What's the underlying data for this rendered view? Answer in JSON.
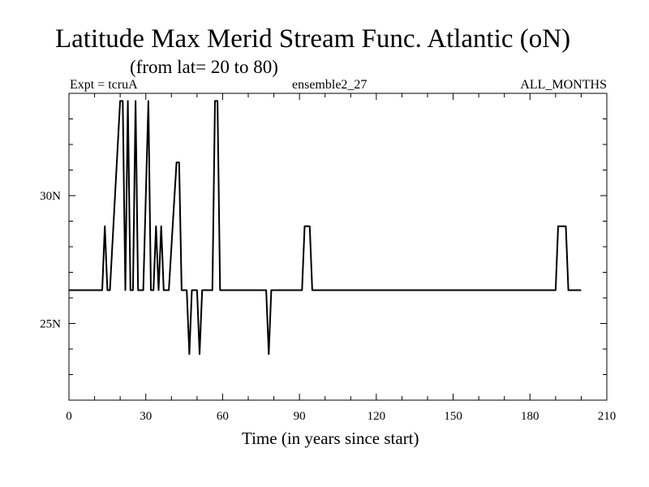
{
  "header": {
    "title": "Latitude Max Merid Stream Func. Atlantic (oN)",
    "subtitle": "(from lat= 20 to 80)",
    "expt": "Expt = tcruA",
    "ensemble": "ensemble2_27",
    "months": "ALL_MONTHS"
  },
  "colors": {
    "line": "#000000",
    "background": "#ffffff"
  },
  "chart_data": {
    "type": "line",
    "title": "Latitude Max Merid Stream Func. Atlantic (oN)",
    "subtitle": "(from lat= 20 to 80)",
    "xlabel": "Time (in years since start)",
    "ylabel": "",
    "xlim": [
      0,
      210
    ],
    "ylim": [
      22.0,
      34.0
    ],
    "x_ticks": [
      0,
      30,
      60,
      90,
      120,
      150,
      180,
      210
    ],
    "x_tick_labels": [
      "0",
      "30",
      "60",
      "90",
      "120",
      "150",
      "180",
      "210"
    ],
    "y_ticks": [
      25,
      30
    ],
    "y_tick_labels": [
      "25N",
      "30N"
    ],
    "grid": false,
    "series": [
      {
        "x": [
          0,
          13,
          14,
          15,
          16,
          20,
          21,
          22,
          23,
          24,
          25,
          26,
          27,
          28,
          29,
          31,
          32,
          33,
          34,
          35,
          36,
          37,
          38,
          39,
          42,
          43,
          44,
          45,
          46,
          47,
          48,
          50,
          51,
          52,
          53,
          56,
          57,
          58,
          59,
          60,
          76,
          77,
          78,
          79,
          80,
          91,
          92,
          94,
          95,
          190,
          191,
          194,
          195,
          200
        ],
        "y": [
          26.3,
          26.3,
          28.8,
          26.3,
          26.3,
          33.7,
          33.7,
          26.3,
          33.7,
          26.3,
          26.3,
          33.7,
          26.3,
          26.3,
          26.3,
          33.7,
          26.3,
          26.3,
          28.8,
          26.3,
          28.8,
          26.3,
          26.3,
          26.3,
          31.3,
          31.3,
          26.3,
          26.3,
          26.3,
          23.8,
          26.3,
          26.3,
          23.8,
          26.3,
          26.3,
          26.3,
          33.7,
          33.7,
          26.3,
          26.3,
          26.3,
          26.3,
          23.8,
          26.3,
          26.3,
          26.3,
          28.8,
          28.8,
          26.3,
          26.3,
          28.8,
          28.8,
          26.3,
          26.3
        ]
      }
    ]
  }
}
